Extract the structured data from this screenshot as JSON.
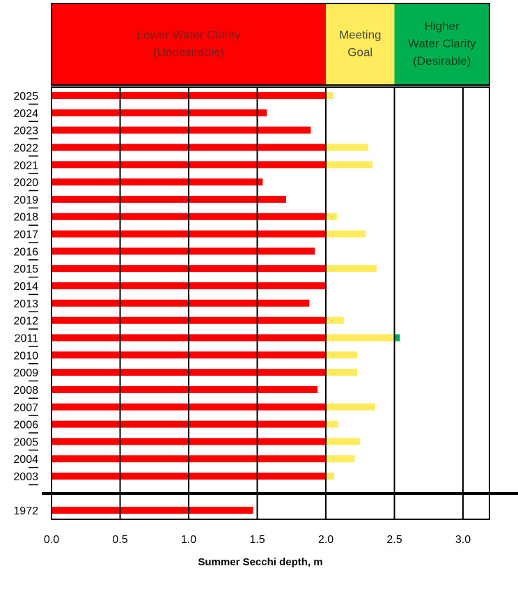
{
  "chart_data": {
    "type": "bar",
    "orientation": "horizontal",
    "xlabel": "Summer Secchi depth, m",
    "xlim": [
      0,
      3.2
    ],
    "xticks": [
      "0.0",
      "0.5",
      "1.0",
      "1.5",
      "2.0",
      "2.5",
      "3.0"
    ],
    "grid": "vertical lines at 0.5 intervals",
    "zones": [
      {
        "label_lines": [
          "Lower Water Clarity",
          "(Undesirable)"
        ],
        "from": 0,
        "to": 2.0,
        "color": "#ff0000",
        "text_color": "#7f1a1a"
      },
      {
        "label_lines": [
          "Meeting",
          "Goal"
        ],
        "from": 2.0,
        "to": 2.5,
        "color": "#ffeb5c",
        "text_color": "#4a4a3a"
      },
      {
        "label_lines": [
          "Higher",
          "Water Clarity",
          "(Desirable)"
        ],
        "from": 2.5,
        "to": 3.2,
        "color": "#00b050",
        "text_color": "#0d3d1f"
      }
    ],
    "categories": [
      "2025",
      "2024",
      "2023",
      "2022",
      "2021",
      "2020",
      "2019",
      "2018",
      "2017",
      "2016",
      "2015",
      "2014",
      "2013",
      "2012",
      "2011",
      "2010",
      "2009",
      "2008",
      "2007",
      "2006",
      "2005",
      "2004",
      "2003",
      "1972"
    ],
    "values": [
      2.05,
      1.57,
      1.89,
      2.31,
      2.34,
      1.54,
      1.71,
      2.08,
      2.29,
      1.92,
      2.37,
      2.0,
      1.88,
      2.13,
      2.54,
      2.23,
      2.23,
      1.94,
      2.36,
      2.09,
      2.25,
      2.21,
      2.06,
      1.47
    ],
    "axis_break_before": "1972"
  }
}
